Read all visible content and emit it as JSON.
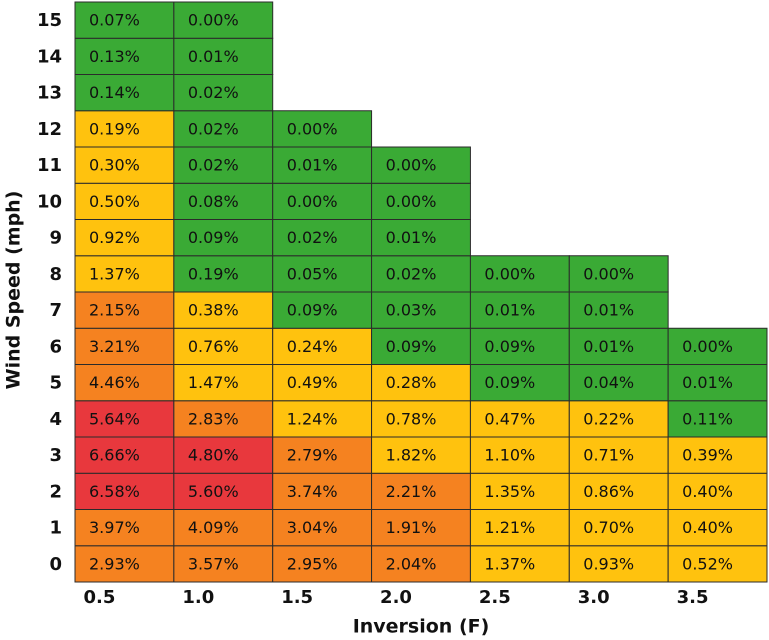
{
  "chart_data": {
    "type": "heatmap",
    "x_label": "Inversion (F)",
    "y_label": "Wind Speed (mph)",
    "x_categories": [
      "0.5",
      "1.0",
      "1.5",
      "2.0",
      "2.5",
      "3.0",
      "3.5"
    ],
    "y_categories": [
      0,
      1,
      2,
      3,
      4,
      5,
      6,
      7,
      8,
      9,
      10,
      11,
      12,
      13,
      14,
      15
    ],
    "values": [
      [
        2.93,
        3.57,
        2.95,
        2.04,
        1.37,
        0.93,
        0.52
      ],
      [
        3.97,
        4.09,
        3.04,
        1.91,
        1.21,
        0.7,
        0.4
      ],
      [
        6.58,
        5.6,
        3.74,
        2.21,
        1.35,
        0.86,
        0.4
      ],
      [
        6.66,
        4.8,
        2.79,
        1.82,
        1.1,
        0.71,
        0.39
      ],
      [
        5.64,
        2.83,
        1.24,
        0.78,
        0.47,
        0.22,
        0.11
      ],
      [
        4.46,
        1.47,
        0.49,
        0.28,
        0.09,
        0.04,
        0.01
      ],
      [
        3.21,
        0.76,
        0.24,
        0.09,
        0.09,
        0.01,
        0.0
      ],
      [
        2.15,
        0.38,
        0.09,
        0.03,
        0.01,
        0.01,
        null
      ],
      [
        1.37,
        0.19,
        0.05,
        0.02,
        0.0,
        0.0,
        null
      ],
      [
        0.92,
        0.09,
        0.02,
        0.01,
        null,
        null,
        null
      ],
      [
        0.5,
        0.08,
        0.0,
        0.0,
        null,
        null,
        null
      ],
      [
        0.3,
        0.02,
        0.01,
        0.0,
        null,
        null,
        null
      ],
      [
        0.19,
        0.02,
        0.0,
        null,
        null,
        null,
        null
      ],
      [
        0.14,
        0.02,
        null,
        null,
        null,
        null,
        null
      ],
      [
        0.13,
        0.01,
        null,
        null,
        null,
        null,
        null
      ],
      [
        0.07,
        0.0,
        null,
        null,
        null,
        null,
        null
      ]
    ],
    "value_labels": [
      [
        "2.93%",
        "3.57%",
        "2.95%",
        "2.04%",
        "1.37%",
        "0.93%",
        "0.52%"
      ],
      [
        "3.97%",
        "4.09%",
        "3.04%",
        "1.91%",
        "1.21%",
        "0.70%",
        "0.40%"
      ],
      [
        "6.58%",
        "5.60%",
        "3.74%",
        "2.21%",
        "1.35%",
        "0.86%",
        "0.40%"
      ],
      [
        "6.66%",
        "4.80%",
        "2.79%",
        "1.82%",
        "1.10%",
        "0.71%",
        "0.39%"
      ],
      [
        "5.64%",
        "2.83%",
        "1.24%",
        "0.78%",
        "0.47%",
        "0.22%",
        "0.11%"
      ],
      [
        "4.46%",
        "1.47%",
        "0.49%",
        "0.28%",
        "0.09%",
        "0.04%",
        "0.01%"
      ],
      [
        "3.21%",
        "0.76%",
        "0.24%",
        "0.09%",
        "0.09%",
        "0.01%",
        "0.00%"
      ],
      [
        "2.15%",
        "0.38%",
        "0.09%",
        "0.03%",
        "0.01%",
        "0.01%",
        null
      ],
      [
        "1.37%",
        "0.19%",
        "0.05%",
        "0.02%",
        "0.00%",
        "0.00%",
        null
      ],
      [
        "0.92%",
        "0.09%",
        "0.02%",
        "0.01%",
        null,
        null,
        null
      ],
      [
        "0.50%",
        "0.08%",
        "0.00%",
        "0.00%",
        null,
        null,
        null
      ],
      [
        "0.30%",
        "0.02%",
        "0.01%",
        "0.00%",
        null,
        null,
        null
      ],
      [
        "0.19%",
        "0.02%",
        "0.00%",
        null,
        null,
        null,
        null
      ],
      [
        "0.14%",
        "0.02%",
        null,
        null,
        null,
        null,
        null
      ],
      [
        "0.13%",
        "0.01%",
        null,
        null,
        null,
        null,
        null
      ],
      [
        "0.07%",
        "0.00%",
        null,
        null,
        null,
        null,
        null
      ]
    ],
    "colors": [
      [
        "#f58220",
        "#f58220",
        "#f58220",
        "#f58220",
        "#ffc20e",
        "#ffc20e",
        "#ffc20e"
      ],
      [
        "#f58220",
        "#f58220",
        "#f58220",
        "#f58220",
        "#ffc20e",
        "#ffc20e",
        "#ffc20e"
      ],
      [
        "#e8383d",
        "#e8383d",
        "#f58220",
        "#f58220",
        "#ffc20e",
        "#ffc20e",
        "#ffc20e"
      ],
      [
        "#e8383d",
        "#e8383d",
        "#f58220",
        "#ffc20e",
        "#ffc20e",
        "#ffc20e",
        "#ffc20e"
      ],
      [
        "#e8383d",
        "#f58220",
        "#ffc20e",
        "#ffc20e",
        "#ffc20e",
        "#ffc20e",
        "#3aaa35"
      ],
      [
        "#f58220",
        "#ffc20e",
        "#ffc20e",
        "#ffc20e",
        "#3aaa35",
        "#3aaa35",
        "#3aaa35"
      ],
      [
        "#f58220",
        "#ffc20e",
        "#ffc20e",
        "#3aaa35",
        "#3aaa35",
        "#3aaa35",
        "#3aaa35"
      ],
      [
        "#f58220",
        "#ffc20e",
        "#3aaa35",
        "#3aaa35",
        "#3aaa35",
        "#3aaa35",
        null
      ],
      [
        "#ffc20e",
        "#3aaa35",
        "#3aaa35",
        "#3aaa35",
        "#3aaa35",
        "#3aaa35",
        null
      ],
      [
        "#ffc20e",
        "#3aaa35",
        "#3aaa35",
        "#3aaa35",
        null,
        null,
        null
      ],
      [
        "#ffc20e",
        "#3aaa35",
        "#3aaa35",
        "#3aaa35",
        null,
        null,
        null
      ],
      [
        "#ffc20e",
        "#3aaa35",
        "#3aaa35",
        "#3aaa35",
        null,
        null,
        null
      ],
      [
        "#ffc20e",
        "#3aaa35",
        "#3aaa35",
        null,
        null,
        null,
        null
      ],
      [
        "#3aaa35",
        "#3aaa35",
        null,
        null,
        null,
        null,
        null
      ],
      [
        "#3aaa35",
        "#3aaa35",
        null,
        null,
        null,
        null,
        null
      ],
      [
        "#3aaa35",
        "#3aaa35",
        null,
        null,
        null,
        null,
        null
      ]
    ]
  }
}
